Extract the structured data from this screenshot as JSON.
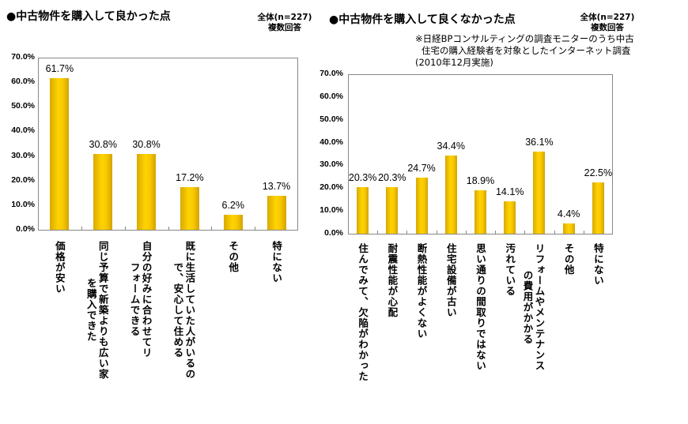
{
  "chart_data": [
    {
      "type": "bar",
      "title": "●中古物件を購入して良かった点",
      "sample": "全体(n=227)",
      "answer_type": "複数回答",
      "ylim": [
        0,
        70
      ],
      "yticks": [
        "0.0%",
        "10.0%",
        "20.0%",
        "30.0%",
        "40.0%",
        "50.0%",
        "60.0%",
        "70.0%"
      ],
      "categories": [
        [
          "価格が安い"
        ],
        [
          "同じ予算で新築よりも広い家",
          "を購入できた"
        ],
        [
          "自分の好みに合わせてリ",
          "フォームできる"
        ],
        [
          "既に生活していた人がいるの",
          "で、安心して住める"
        ],
        [
          "その他"
        ],
        [
          "特にない"
        ]
      ],
      "values": [
        61.7,
        30.8,
        30.8,
        17.2,
        6.2,
        13.7
      ],
      "data_labels": [
        "61.7%",
        "30.8%",
        "30.8%",
        "17.2%",
        "6.2%",
        "13.7%"
      ],
      "bar_color": "#f5c400",
      "grid": false
    },
    {
      "type": "bar",
      "title": "●中古物件を購入して良くなかった点",
      "sample": "全体(n=227)",
      "answer_type": "複数回答",
      "note": [
        "※日経BPコンサルティングの調査モニターのうち中古",
        "住宅の購入経験者を対象としたインターネット調査",
        "(2010年12月実施)"
      ],
      "ylim": [
        0,
        70
      ],
      "yticks": [
        "0.0%",
        "10.0%",
        "20.0%",
        "30.0%",
        "40.0%",
        "50.0%",
        "60.0%",
        "70.0%"
      ],
      "categories": [
        [
          "住んでみて、欠陥がわかった"
        ],
        [
          "耐震性能が心配"
        ],
        [
          "断熱性能がよくない"
        ],
        [
          "住宅設備が古い"
        ],
        [
          "思い通りの間取りではない"
        ],
        [
          "汚れている"
        ],
        [
          "リフォームやメンテナンス",
          "の費用がかかる"
        ],
        [
          "その他"
        ],
        [
          "特にない"
        ]
      ],
      "values": [
        20.3,
        20.3,
        24.7,
        34.4,
        18.9,
        14.1,
        36.1,
        4.4,
        22.5
      ],
      "data_labels": [
        "20.3%",
        "20.3%",
        "24.7%",
        "34.4%",
        "18.9%",
        "14.1%",
        "36.1%",
        "4.4%",
        "22.5%"
      ],
      "bar_color": "#f5c400",
      "grid": false
    }
  ]
}
